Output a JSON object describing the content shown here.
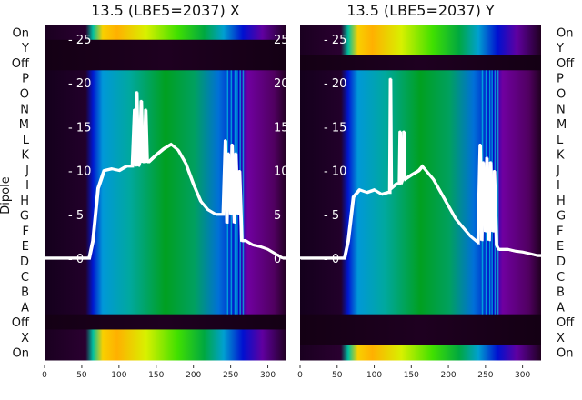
{
  "chart_data": [
    {
      "type": "heatmap",
      "title": "13.5 (LBE5=2037) X",
      "ylabel": "Dipole",
      "row_labels": [
        "On",
        "Y",
        "Off",
        "P",
        "O",
        "N",
        "M",
        "L",
        "K",
        "J",
        "I",
        "H",
        "G",
        "F",
        "E",
        "D",
        "C",
        "B",
        "A",
        "Off",
        "X",
        "On"
      ],
      "xticks": [
        0,
        50,
        100,
        150,
        200,
        250,
        300
      ],
      "xlim": [
        0,
        325
      ],
      "line_yticks": [
        0,
        5,
        10,
        15,
        20,
        25
      ],
      "line_ylim": [
        -11.5,
        26.5
      ],
      "line": {
        "x": [
          0,
          60,
          65,
          72,
          80,
          90,
          100,
          110,
          118,
          121,
          122,
          124,
          126,
          128,
          130,
          132,
          134,
          136,
          138,
          140,
          150,
          160,
          170,
          180,
          190,
          200,
          210,
          220,
          230,
          240,
          243,
          245,
          247,
          250,
          252,
          255,
          257,
          260,
          262,
          265,
          268,
          270,
          280,
          290,
          300,
          310,
          320,
          325
        ],
        "y": [
          0,
          0,
          2,
          8,
          10,
          10.2,
          10,
          10.5,
          10.5,
          17,
          10.5,
          19,
          10.5,
          11,
          18,
          11,
          11,
          17,
          11,
          11,
          11.8,
          12.5,
          13,
          12.3,
          10.8,
          8.5,
          6.5,
          5.5,
          5,
          5,
          13.5,
          4,
          12,
          5,
          13,
          4,
          12,
          5,
          10,
          2,
          2,
          2,
          1.5,
          1.3,
          1,
          0.5,
          0,
          0
        ]
      },
      "bright_rows": [
        "On",
        "X"
      ],
      "dark_rows": [
        "Y",
        "Off"
      ]
    },
    {
      "type": "heatmap",
      "title": "13.5 (LBE5=2037) Y",
      "ylabel": "",
      "row_labels": [
        "On",
        "Y",
        "Off",
        "P",
        "O",
        "N",
        "M",
        "L",
        "K",
        "J",
        "I",
        "H",
        "G",
        "F",
        "E",
        "D",
        "C",
        "B",
        "A",
        "Off",
        "X",
        "On"
      ],
      "xticks": [
        0,
        50,
        100,
        150,
        200,
        250,
        300
      ],
      "xlim": [
        0,
        325
      ],
      "line_yticks": [
        0,
        5,
        10,
        15,
        20,
        25
      ],
      "line_ylim": [
        -11.5,
        26.5
      ],
      "line": {
        "x": [
          0,
          60,
          65,
          72,
          80,
          90,
          100,
          110,
          118,
          121,
          122,
          123,
          130,
          134,
          135,
          136,
          138,
          140,
          141,
          150,
          160,
          165,
          170,
          180,
          190,
          200,
          210,
          220,
          230,
          240,
          243,
          245,
          247,
          250,
          252,
          255,
          257,
          260,
          262,
          265,
          268,
          270,
          280,
          290,
          300,
          310,
          320,
          325
        ],
        "y": [
          0,
          0,
          2,
          7,
          7.8,
          7.5,
          7.8,
          7.3,
          7.5,
          7.5,
          20.5,
          8,
          8.5,
          8.5,
          14.5,
          8.5,
          9,
          14.5,
          9,
          9.5,
          10,
          10.5,
          10,
          9,
          7.5,
          6,
          4.5,
          3.5,
          2.5,
          1.8,
          13,
          2,
          11,
          3,
          11.5,
          2,
          11,
          3,
          10,
          1.5,
          1,
          1,
          1,
          0.8,
          0.7,
          0.5,
          0.3,
          0.3
        ]
      },
      "bright_rows": [
        "On",
        "Y",
        "On2"
      ],
      "dark_rows": [
        "Off",
        "X"
      ]
    }
  ]
}
